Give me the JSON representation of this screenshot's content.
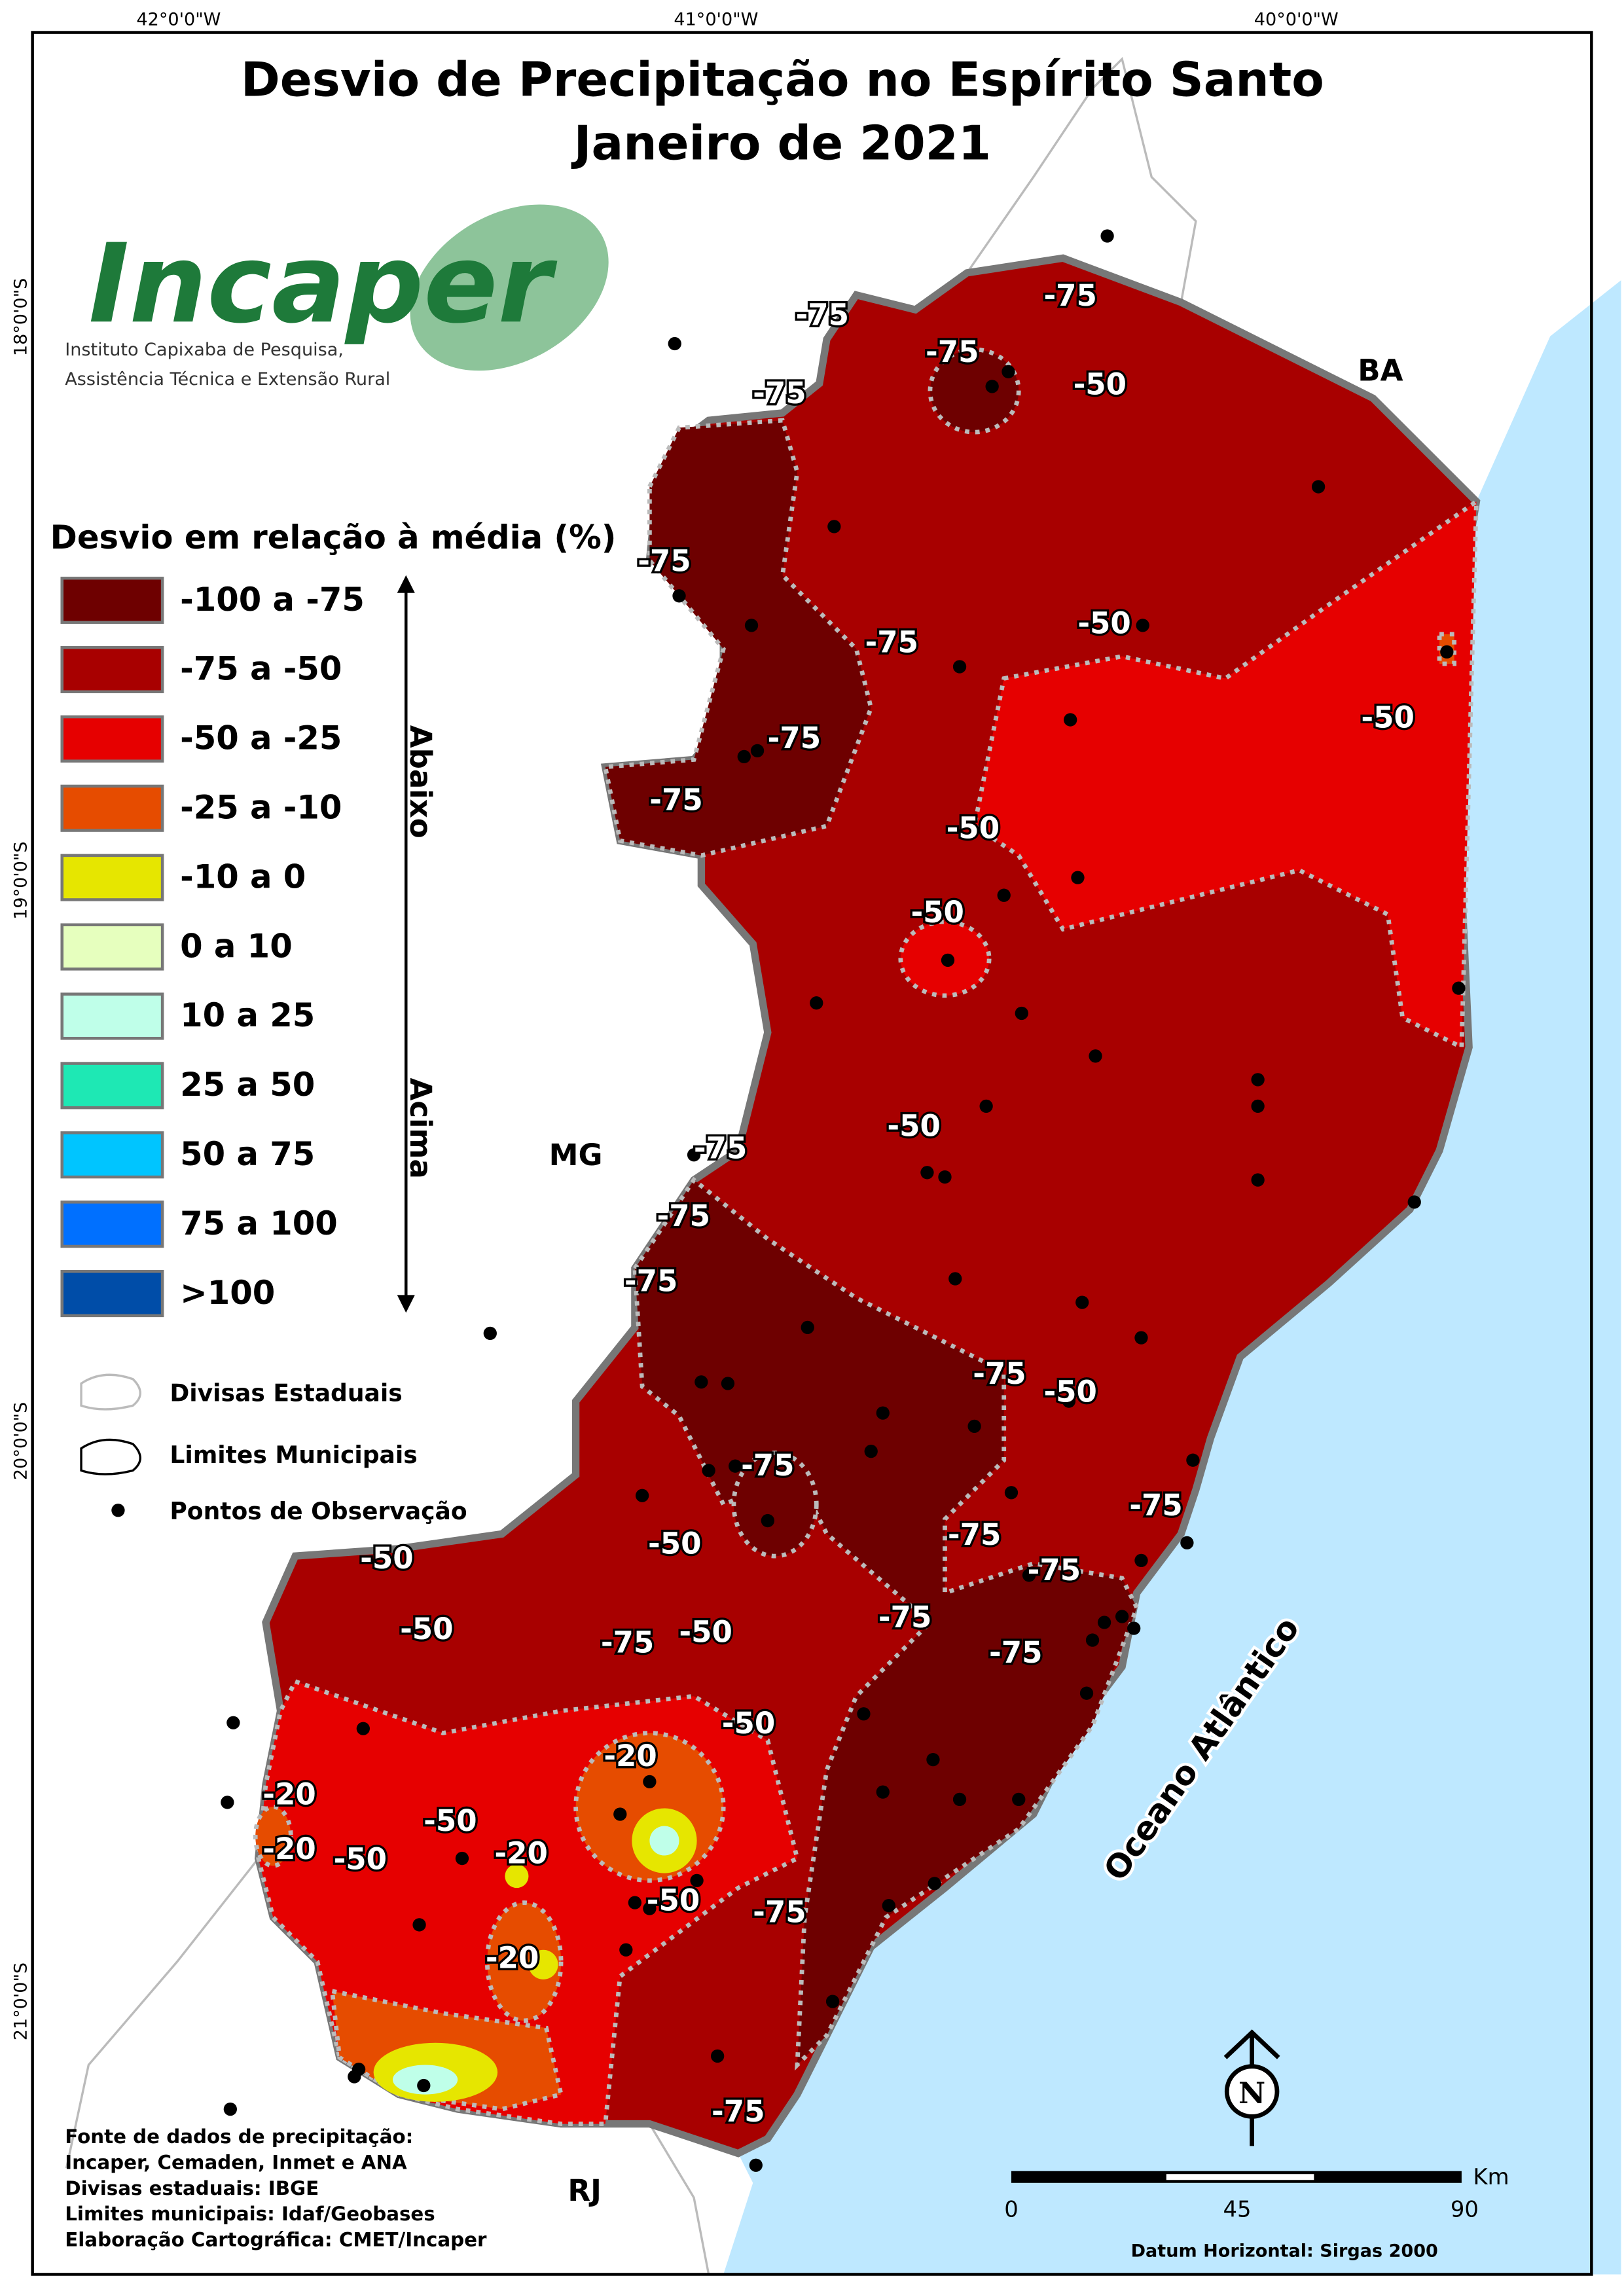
{
  "title": {
    "line1": "Desvio de Precipitação no Espírito Santo",
    "line2": "Janeiro de 2021"
  },
  "logo": {
    "name": "Incaper",
    "subtitle1": "Instituto Capixaba de Pesquisa,",
    "subtitle2": "Assistência Técnica e Extensão Rural"
  },
  "coordinates": {
    "top": [
      "42°0'0\"W",
      "41°0'0\"W",
      "40°0'0\"W"
    ],
    "left": [
      "18°0'0\"S",
      "19°0'0\"S",
      "20°0'0\"S",
      "21°0'0\"S"
    ]
  },
  "legend": {
    "title": "Desvio em relação à média (%)",
    "items": [
      {
        "label": "-100 a -75",
        "color": "#6e0000"
      },
      {
        "label": "-75 a -50",
        "color": "#a80000"
      },
      {
        "label": "-50 a -25",
        "color": "#e60000"
      },
      {
        "label": "-25 a -10",
        "color": "#e64c00"
      },
      {
        "label": "-10 a 0",
        "color": "#e6e600"
      },
      {
        "label": "0 a 10",
        "color": "#e6ffbe"
      },
      {
        "label": "10 a 25",
        "color": "#bfffe9"
      },
      {
        "label": "25 a 50",
        "color": "#1ee8b4"
      },
      {
        "label": "50 a 75",
        "color": "#00c5ff"
      },
      {
        "label": "75 a 100",
        "color": "#0070ff"
      },
      {
        "label": ">100",
        "color": "#004da8"
      }
    ],
    "below": "Abaixo",
    "above": "Acima"
  },
  "symbols": [
    "Divisas Estaduais",
    "Limites Municipais",
    "Pontos de Observação"
  ],
  "regions": [
    "BA",
    "MG",
    "RJ"
  ],
  "ocean": "Oceano Atlântico",
  "contour_labels": [
    "-75",
    "-75",
    "-75",
    "-50",
    "-75",
    "-75",
    "-75",
    "-50",
    "-50",
    "-75",
    "-75",
    "-50",
    "-50",
    "-50",
    "-75",
    "-75",
    "-75",
    "-75",
    "-50",
    "-75",
    "-75",
    "-50",
    "-75",
    "-50",
    "-75",
    "-50",
    "-75",
    "-50",
    "-75",
    "-75",
    "-50",
    "-20",
    "-20",
    "-50",
    "-20",
    "-50",
    "-20",
    "-50",
    "-75",
    "-20",
    "-75"
  ],
  "sources": [
    "Fonte de dados de precipitação:",
    "Incaper, Cemaden, Inmet e ANA",
    "Divisas estaduais: IBGE",
    "Limites municipais: Idaf/Geobases",
    "Elaboração Cartográfica: CMET/Incaper"
  ],
  "scale_bar": {
    "unit": "Km",
    "ticks": [
      0,
      45,
      90
    ]
  },
  "datum": "Datum Horizontal: Sirgas 2000",
  "north": "N"
}
